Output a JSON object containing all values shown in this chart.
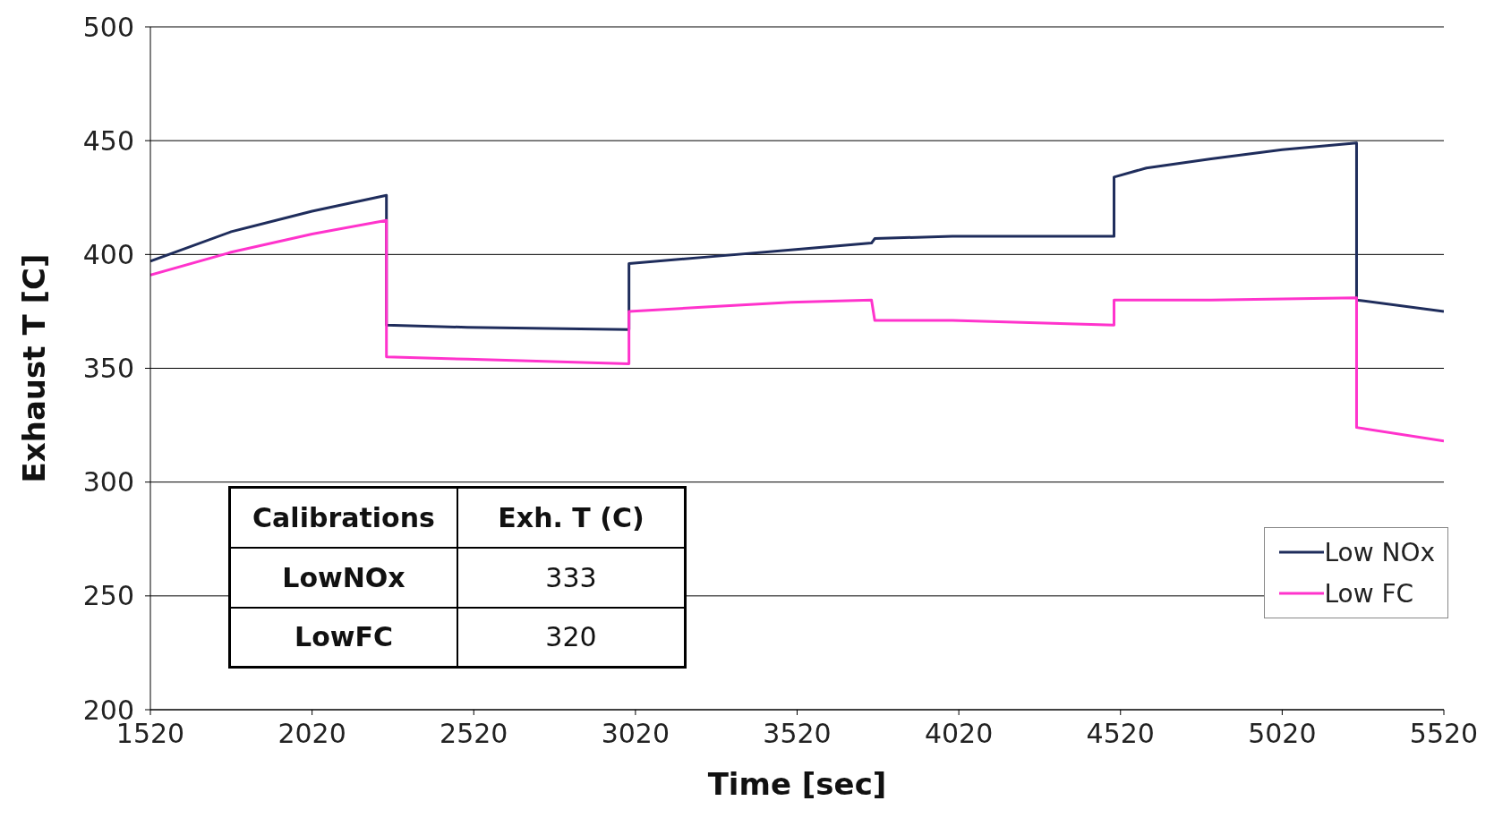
{
  "chart_data": {
    "type": "line",
    "xlabel": "Time [sec]",
    "ylabel": "Exhaust T [C]",
    "xlim": [
      1520,
      5520
    ],
    "xticks": [
      1520,
      2020,
      2520,
      3020,
      3520,
      4020,
      4520,
      5020,
      5520
    ],
    "ylim": [
      200,
      500
    ],
    "yticks": [
      200,
      250,
      300,
      350,
      400,
      450,
      500
    ],
    "grid": "y",
    "legend": "bottom right",
    "marker": "none",
    "line_style": "solid",
    "series": [
      {
        "name": "Low NOx",
        "color": "#1f2d5c",
        "x": [
          1520,
          1770,
          2020,
          2250,
          2250,
          2500,
          3000,
          3000,
          3250,
          3500,
          3750,
          3760,
          4000,
          4500,
          4500,
          4600,
          4800,
          5020,
          5250,
          5250,
          5520
        ],
        "values": [
          397,
          410,
          419,
          426,
          369,
          368,
          367,
          396,
          399,
          402,
          405,
          407,
          408,
          408,
          434,
          438,
          442,
          446,
          449,
          380,
          375
        ]
      },
      {
        "name": "Low FC",
        "color": "#ff33cc",
        "x": [
          1520,
          1770,
          2020,
          2250,
          2250,
          2500,
          3000,
          3000,
          3250,
          3500,
          3750,
          3760,
          4000,
          4500,
          4500,
          4800,
          5250,
          5250,
          5520
        ],
        "values": [
          391,
          401,
          409,
          415,
          355,
          354,
          352,
          375,
          377,
          379,
          380,
          371,
          371,
          369,
          380,
          380,
          381,
          324,
          318
        ]
      }
    ],
    "annotations": [
      "Calibrations",
      "Exh. T (C)",
      "LowNOx",
      "333",
      "LowFC",
      "320"
    ]
  }
}
